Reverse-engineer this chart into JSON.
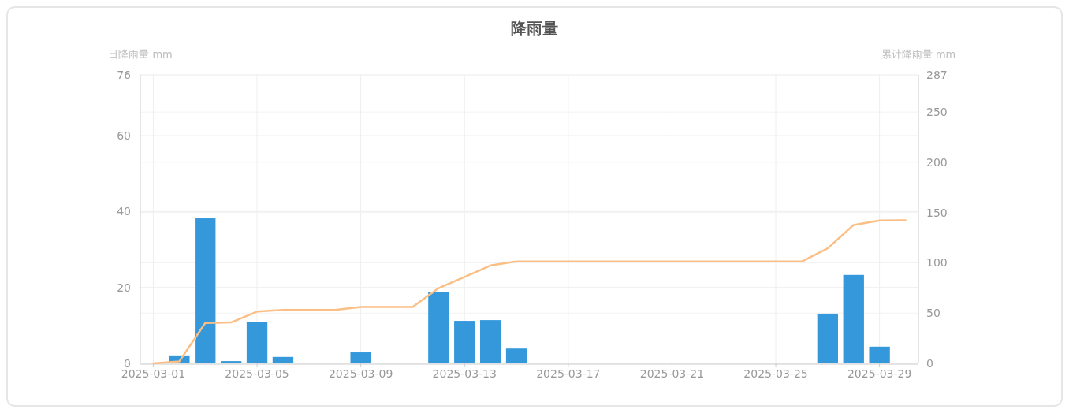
{
  "chart_data": {
    "type": "bar",
    "title": "降雨量",
    "ylabel": "日降雨量 mm",
    "y2label": "累计降雨量 mm",
    "x": [
      "2025-03-01",
      "2025-03-02",
      "2025-03-03",
      "2025-03-04",
      "2025-03-05",
      "2025-03-06",
      "2025-03-07",
      "2025-03-08",
      "2025-03-09",
      "2025-03-10",
      "2025-03-11",
      "2025-03-12",
      "2025-03-13",
      "2025-03-14",
      "2025-03-15",
      "2025-03-16",
      "2025-03-17",
      "2025-03-18",
      "2025-03-19",
      "2025-03-20",
      "2025-03-21",
      "2025-03-22",
      "2025-03-23",
      "2025-03-24",
      "2025-03-25",
      "2025-03-26",
      "2025-03-27",
      "2025-03-28",
      "2025-03-29",
      "2025-03-30"
    ],
    "xlim": [
      "2025-02-28T12:00",
      "2025-03-30T12:00"
    ],
    "xticks": [
      "2025-03-01",
      "2025-03-05",
      "2025-03-09",
      "2025-03-13",
      "2025-03-17",
      "2025-03-21",
      "2025-03-25",
      "2025-03-29"
    ],
    "ylim": [
      0,
      76
    ],
    "yticks": [
      0,
      20,
      40,
      60,
      76
    ],
    "y2lim": [
      0,
      287
    ],
    "y2ticks": [
      0,
      50,
      100,
      150,
      200,
      250,
      287
    ],
    "grid": true,
    "series": [
      {
        "color": "#3498db",
        "values": [
          0,
          1.9,
          38.2,
          0.6,
          10.8,
          1.7,
          0,
          0,
          2.9,
          0,
          0,
          18.7,
          11.2,
          11.4,
          3.9,
          0,
          0,
          0,
          0,
          0,
          0,
          0,
          0,
          0,
          0,
          0,
          13.1,
          23.3,
          4.4,
          0.2
        ]
      },
      {
        "type": "line",
        "axis": "y2",
        "color": "#fbbf86",
        "values": [
          0,
          1.9,
          40.1,
          40.7,
          51.5,
          53.2,
          53.2,
          53.2,
          56.1,
          56.1,
          56.1,
          74.8,
          86,
          97.4,
          101.3,
          101.3,
          101.3,
          101.3,
          101.3,
          101.3,
          101.3,
          101.3,
          101.3,
          101.3,
          101.3,
          101.3,
          114.4,
          137.7,
          142.1,
          142.3
        ]
      }
    ]
  }
}
